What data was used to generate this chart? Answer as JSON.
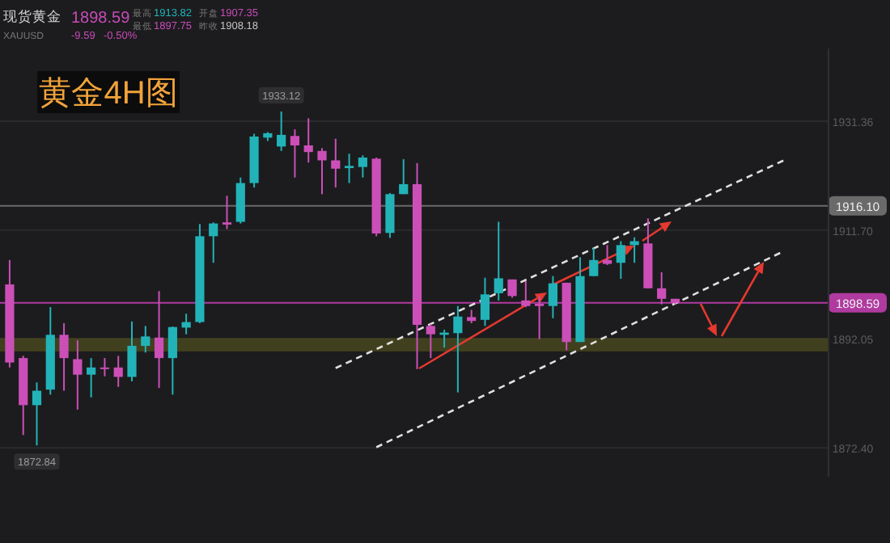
{
  "chart_data": {
    "type": "candlestick",
    "title": "黄金4H图",
    "annotations": [
      "现货黄金",
      "XAUUSD",
      "1898.59",
      "-9.59",
      "-0.50%",
      "最高",
      "1913.82",
      "开盘",
      "1907.35",
      "最低",
      "1897.75",
      "昨收",
      "1908.18",
      {
        "text": "1933.12",
        "y": 1933.12
      },
      {
        "text": "1872.84",
        "y": 1872.84
      }
    ],
    "categories": [
      null,
      null,
      null,
      null,
      null,
      null,
      null,
      null,
      null,
      null,
      null,
      null,
      null,
      null,
      null,
      null,
      null,
      null,
      null,
      null,
      null,
      null,
      null,
      null,
      null,
      null,
      null,
      null,
      null,
      null,
      null,
      null,
      null,
      null,
      null,
      null,
      null,
      null,
      null,
      null,
      null,
      null,
      null,
      null,
      null,
      null,
      null,
      null,
      null,
      null,
      null,
      null,
      null,
      null,
      null,
      null,
      null,
      null,
      null,
      null,
      null
    ],
    "ohlc": [
      null,
      [
        1901.9,
        1906.3,
        1886.9,
        1887.8
      ],
      [
        1888.6,
        1889.0,
        1874.7,
        1880.1
      ],
      [
        1880.1,
        1884.2,
        1872.84,
        1882.7
      ],
      [
        1882.9,
        1897.8,
        1882.0,
        1892.8
      ],
      [
        1892.8,
        1894.9,
        1882.7,
        1888.6
      ],
      [
        1888.4,
        1891.8,
        1879.3,
        1885.6
      ],
      [
        1885.6,
        1888.6,
        1881.5,
        1886.9
      ],
      [
        1886.9,
        1888.6,
        1885.3,
        1886.7
      ],
      [
        1886.9,
        1889.0,
        1883.4,
        1885.2
      ],
      [
        1885.2,
        1895.2,
        1884.4,
        1890.8
      ],
      [
        1890.8,
        1894.4,
        1889.6,
        1892.5
      ],
      [
        1892.3,
        1900.7,
        1883.2,
        1888.6
      ],
      [
        1888.6,
        1894.3,
        1882.0,
        1894.2
      ],
      [
        1894.1,
        1896.6,
        1892.9,
        1895.1
      ],
      [
        1895.1,
        1912.8,
        1894.9,
        1910.6
      ],
      [
        1910.6,
        1913.1,
        1905.8,
        1912.9
      ],
      [
        1913.1,
        1917.9,
        1911.9,
        1912.7
      ],
      [
        1913.2,
        1921.2,
        1912.9,
        1920.2
      ],
      [
        1920.2,
        1929.1,
        1919.4,
        1928.6
      ],
      [
        1928.4,
        1929.4,
        1927.8,
        1929.2
      ],
      [
        1926.8,
        1933.12,
        1926.0,
        1928.9
      ],
      [
        1928.7,
        1929.9,
        1921.2,
        1927.0
      ],
      [
        1927.0,
        1931.9,
        1923.9,
        1925.8
      ],
      [
        1926.0,
        1926.5,
        1918.2,
        1924.3
      ],
      [
        1924.3,
        1928.2,
        1919.4,
        1922.8
      ],
      [
        1922.9,
        1925.5,
        1920.2,
        1923.3
      ],
      [
        1923.1,
        1925.2,
        1921.2,
        1924.8
      ],
      [
        1924.6,
        1924.8,
        1910.6,
        1911.1
      ],
      [
        1911.2,
        1918.4,
        1910.3,
        1918.2
      ],
      [
        1918.2,
        1924.5,
        1918.2,
        1920.0
      ],
      [
        1920.0,
        1923.8,
        1886.6,
        1894.6
      ],
      [
        1894.4,
        1894.7,
        1888.6,
        1892.9
      ],
      [
        1892.8,
        1893.7,
        1890.5,
        1893.2
      ],
      [
        1893.1,
        1898.0,
        1882.4,
        1896.1
      ],
      [
        1896.0,
        1897.3,
        1894.9,
        1895.3
      ],
      [
        1895.5,
        1903.1,
        1894.4,
        1900.1
      ],
      [
        1900.3,
        1913.2,
        1899.0,
        1903.0
      ],
      [
        1902.8,
        1902.8,
        1899.5,
        1899.8
      ],
      [
        1899.0,
        1902.5,
        1897.8,
        1898.0
      ],
      [
        1898.4,
        1899.8,
        1892.0,
        1898.0
      ],
      [
        1898.0,
        1903.4,
        1895.8,
        1902.1
      ],
      [
        1902.2,
        1902.2,
        1890.0,
        1891.5
      ],
      [
        1891.5,
        1906.8,
        1891.5,
        1903.4
      ],
      [
        1903.4,
        1908.5,
        1903.4,
        1906.3
      ],
      [
        1906.3,
        1909.0,
        1905.4,
        1905.6
      ],
      [
        1905.8,
        1909.7,
        1902.9,
        1909.0
      ],
      [
        1909.0,
        1910.4,
        1905.8,
        1909.7
      ],
      [
        1909.3,
        1913.82,
        1901.2,
        1901.2
      ],
      [
        1901.2,
        1904.1,
        1898.3,
        1899.3
      ],
      [
        1899.3,
        1899.3,
        1898.3,
        1898.59
      ],
      null,
      null,
      null,
      null,
      null,
      null,
      null,
      null,
      null,
      null
    ],
    "colors": [
      null,
      "#cc4fb8",
      "#cc4fb8",
      "#22b3b8",
      "#22b3b8",
      "#cc4fb8",
      "#cc4fb8",
      "#22b3b8",
      "#cc4fb8",
      "#cc4fb8",
      "#22b3b8",
      "#22b3b8",
      "#cc4fb8",
      "#22b3b8",
      "#22b3b8",
      "#22b3b8",
      "#22b3b8",
      "#cc4fb8",
      "#22b3b8",
      "#22b3b8",
      "#22b3b8",
      "#22b3b8",
      "#cc4fb8",
      "#cc4fb8",
      "#cc4fb8",
      "#cc4fb8",
      "#22b3b8",
      "#22b3b8",
      "#cc4fb8",
      "#22b3b8",
      "#22b3b8",
      "#cc4fb8",
      "#cc4fb8",
      "#22b3b8",
      "#22b3b8",
      "#cc4fb8",
      "#22b3b8",
      "#22b3b8",
      "#cc4fb8",
      "#cc4fb8",
      "#cc4fb8",
      "#22b3b8",
      "#cc4fb8",
      "#22b3b8",
      "#22b3b8",
      "#cc4fb8",
      "#22b3b8",
      "#22b3b8",
      "#cc4fb8",
      "#cc4fb8",
      "#cc4fb8",
      null,
      null,
      null,
      null,
      null,
      null,
      null,
      null,
      null,
      null
    ],
    "series": [
      {
        "type": "line",
        "color": "#e0e0e0",
        "line_style": "dashed",
        "values": [
          null,
          null,
          null,
          null,
          null,
          null,
          null,
          null,
          null,
          null,
          null,
          null,
          null,
          null,
          null,
          null,
          null,
          null,
          null,
          null,
          null,
          null,
          null,
          null,
          null,
          1886.8,
          null,
          null,
          null,
          null,
          null,
          null,
          null,
          null,
          null,
          null,
          null,
          null,
          null,
          null,
          null,
          null,
          null,
          null,
          null,
          null,
          null,
          null,
          null,
          null,
          null,
          null,
          null,
          null,
          null,
          null,
          null,
          null,
          1924.3,
          null,
          null
        ]
      },
      {
        "type": "line",
        "color": "#e0e0e0",
        "line_style": "dashed",
        "values": [
          null,
          null,
          null,
          null,
          null,
          null,
          null,
          null,
          null,
          null,
          null,
          null,
          null,
          null,
          null,
          null,
          null,
          null,
          null,
          null,
          null,
          null,
          null,
          null,
          null,
          null,
          null,
          null,
          1872.5,
          null,
          null,
          null,
          null,
          null,
          null,
          null,
          null,
          null,
          null,
          null,
          null,
          null,
          null,
          null,
          null,
          null,
          null,
          null,
          null,
          null,
          null,
          null,
          null,
          null,
          null,
          null,
          null,
          null,
          1907.9,
          null,
          null
        ]
      }
    ],
    "ref_lines": [
      {
        "axis": "y",
        "value": 1916.1,
        "label": "1916.10",
        "color": "#6a6a6a"
      },
      {
        "axis": "y",
        "value": 1898.59,
        "label": "1898.59",
        "color": "#b03aa0"
      }
    ],
    "bands": [
      {
        "axis": "y",
        "from": 1889.8,
        "to": 1892.2,
        "color": "#4a4a1e"
      }
    ],
    "ylim": [
      1867.17,
      1944.5
    ],
    "yticks": [
      1931.36,
      {
        "value": 1911.7,
        "label": "1911.70"
      },
      1892.05,
      {
        "value": 1872.4,
        "label": "1872.40"
      }
    ],
    "grid": "y"
  }
}
